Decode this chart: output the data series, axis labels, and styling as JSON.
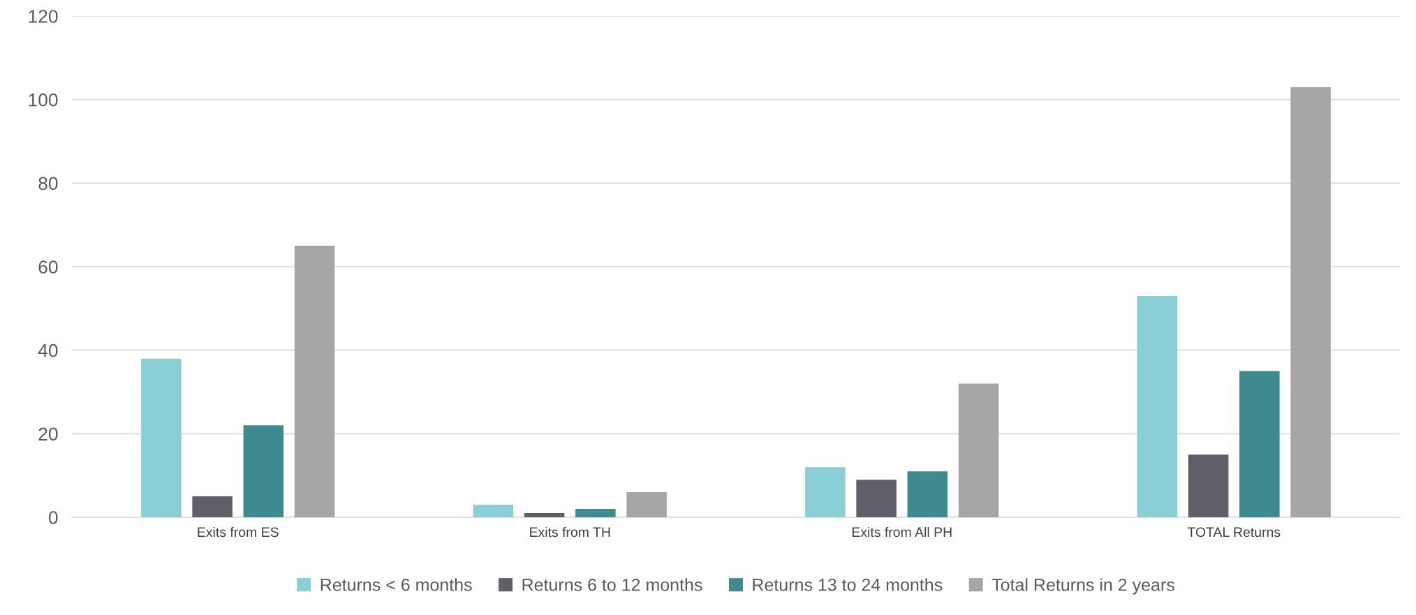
{
  "chart_data": {
    "type": "bar",
    "categories": [
      "Exits from ES",
      "Exits from TH",
      "Exits from All PH",
      "TOTAL Returns"
    ],
    "series": [
      {
        "name": "Returns < 6 months",
        "color": "#8bcfd6",
        "values": [
          38,
          3,
          12,
          53
        ]
      },
      {
        "name": "Returns 6 to 12 months",
        "color": "#605e66",
        "values": [
          5,
          1,
          9,
          15
        ]
      },
      {
        "name": "Returns 13 to 24 months",
        "color": "#3e8a91",
        "values": [
          22,
          2,
          11,
          35
        ]
      },
      {
        "name": "Total Returns in 2 years",
        "color": "#a6a6a6",
        "values": [
          65,
          6,
          32,
          103
        ]
      }
    ],
    "ylim": [
      0,
      120
    ],
    "yticks": [
      0,
      20,
      40,
      60,
      80,
      100,
      120
    ],
    "grid": "y",
    "legend": "bottom"
  }
}
